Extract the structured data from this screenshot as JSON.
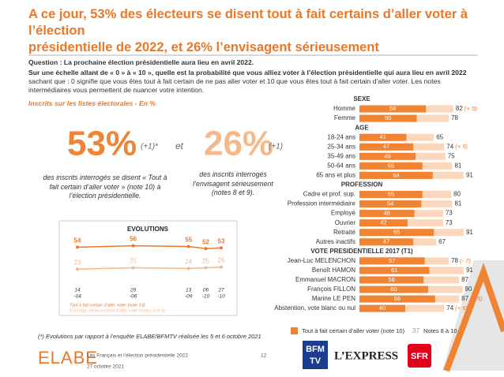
{
  "header": {
    "title_lines": [
      "A ce jour, 53% des électeurs se disent tout à fait certains d’aller voter à l’élection",
      "présidentielle de 2022, et 26% l’envisagent sérieusement"
    ]
  },
  "question": {
    "label": "Question :",
    "text": "La prochaine élection présidentielle aura lieu en avril 2022.",
    "detail_bold": "Sur une échelle allant de « 0 » à « 10 », quelle est la probabilité que vous alliez voter à l’élection présidentielle qui aura lieu en avril 2022",
    "detail": " sachant que : 0 signifie que vous êtes tout à fait certain de ne pas aller voter et 10 que vous êtes tout à fait certain d’aller voter. Les notes intermédiaires vous permettent de nuancer votre intention."
  },
  "subtitle": "Inscrits sur les listes électorales - En %",
  "kpis": [
    {
      "value": "53%",
      "change": "(+1)*",
      "description": "des inscrits interrogés se disent « Tout à fait certain d’aller voter » (note 10) à l’élection présidentielle."
    },
    {
      "value": "26%",
      "change": "(+1)",
      "description": "des inscrits interrogés l’envisagent sérieusement (notes 8 et 9)."
    }
  ],
  "kpi_joiner": "et",
  "footnote": "(*) Evolutions par rapport à l’enquête ELABE/BFMTV réalisée les 5 et 6 octobre 2021",
  "footer": {
    "brand": "ELABE",
    "study": "Les Français et l’élection présidentielle 2022",
    "date": "27 octobre 2021",
    "page": "12",
    "logos": [
      "BFM",
      "TV",
      "L’EXPRESS",
      "SFR"
    ]
  },
  "chart_data": [
    {
      "type": "bar",
      "categories": [
        "SEXE",
        "Homme",
        "Femme",
        "AGE",
        "18-24 ans",
        "25-34 ans",
        "35-49 ans",
        "50-64 ans",
        "65 ans et plus",
        "PROFESSION",
        "Cadre et prof. sup.",
        "Profession intermédiaire",
        "Employé",
        "Ouvrier",
        "Retraité",
        "Autres inactifs",
        "VOTE PRESIDENTIELLE 2017 (T1)",
        "Jean-Luc MELENCHON",
        "Benoît HAMON",
        "Emmanuel MACRON",
        "François FILLON",
        "Marine LE PEN",
        "Abstention, vote blanc ou nul"
      ],
      "series": [
        {
          "name": "Tout à fait certain d’aller voter (note 10)",
          "color": "#ee8434",
          "values": [
            null,
            58,
            50,
            null,
            41,
            47,
            49,
            55,
            64,
            null,
            55,
            54,
            48,
            42,
            65,
            47,
            null,
            57,
            61,
            56,
            60,
            66,
            40
          ]
        },
        {
          "name": "Notes 8 à 10",
          "color": "#fbd8bd",
          "values": [
            null,
            82,
            78,
            null,
            65,
            74,
            75,
            81,
            91,
            null,
            80,
            81,
            73,
            73,
            91,
            67,
            null,
            78,
            91,
            87,
            90,
            87,
            74
          ]
        }
      ],
      "annotations": [
        null,
        "(+ 5)",
        null,
        null,
        null,
        "(+ 5)",
        null,
        null,
        null,
        null,
        null,
        null,
        null,
        null,
        null,
        null,
        null,
        "(- 7)",
        null,
        null,
        null,
        "(+ 5)",
        "(+ 6)"
      ],
      "legend_note": "37"
    },
    {
      "type": "line",
      "title": "EVOLUTIONS",
      "categories": [
        [
          "14",
          "-04"
        ],
        [
          "29",
          "-06"
        ],
        [
          "13",
          "-09"
        ],
        [
          "06",
          "-10"
        ],
        [
          "27",
          "-10"
        ]
      ],
      "series": [
        {
          "name": "Tout à fait certain d’aller voter (note 10)",
          "color": "#e8782a",
          "values": [
            54,
            56,
            55,
            52,
            53
          ]
        },
        {
          "name": "Envisage sérieusement d’aller voter (notes 8 et 9)",
          "color": "#f5b88a",
          "values": [
            23,
            25,
            24,
            25,
            26
          ]
        }
      ]
    }
  ]
}
